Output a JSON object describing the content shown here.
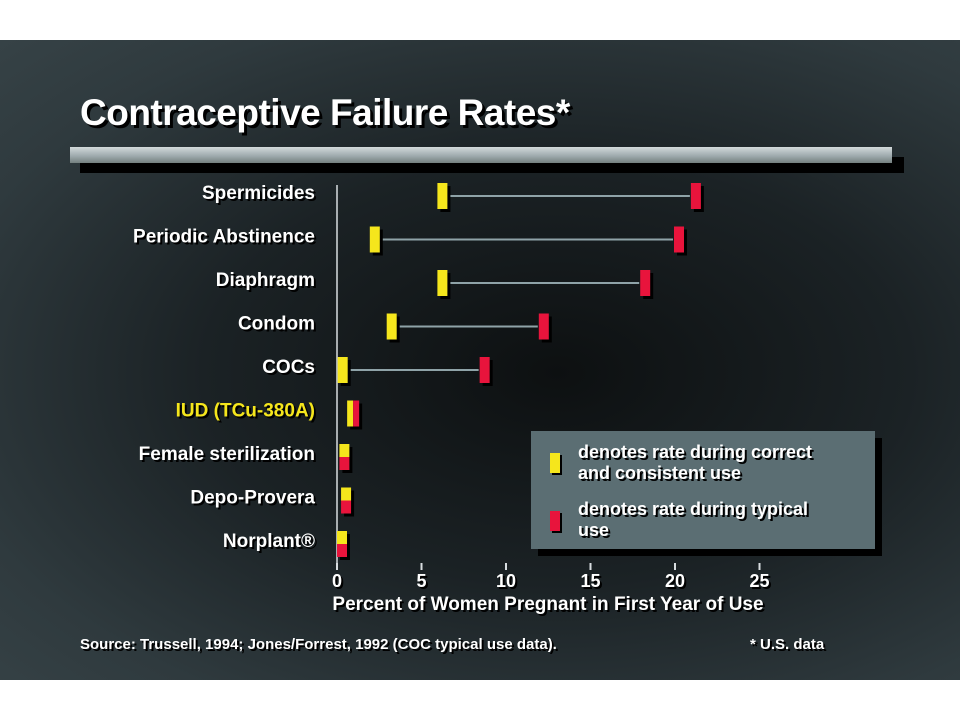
{
  "title": "Contraceptive Failure Rates*",
  "colors": {
    "correct_use": "#f5e61c",
    "typical_use": "#e8143c",
    "connector": "#8fa3a8",
    "highlight_label": "#f5e61c"
  },
  "legend": {
    "correct_label": "denotes rate during correct and consistent use",
    "correct_line1": "denotes rate during correct",
    "correct_line2": "and consistent use",
    "typical_label": "denotes rate during typical use",
    "typical_line1": "denotes rate during typical",
    "typical_line2": "use",
    "placement": "bottom-right"
  },
  "source": "Source:  Trussell, 1994; Jones/Forrest, 1992 (COC typical use data).",
  "footnote": "* U.S. data",
  "chart_data": {
    "type": "dot-range",
    "title": "Contraceptive Failure Rates*",
    "xlabel": "Percent of Women Pregnant in First Year of Use",
    "ylabel": "",
    "xlim": [
      0,
      25
    ],
    "xticks": [
      0,
      5,
      10,
      15,
      20,
      25
    ],
    "grid": false,
    "highlight_category": "IUD (TCu-380A)",
    "categories": [
      "Spermicides",
      "Periodic Abstinence",
      "Diaphragm",
      "Condom",
      "COCs",
      "IUD (TCu-380A)",
      "Female sterilization",
      "Depo-Provera",
      "Norplant®"
    ],
    "series": [
      {
        "name": "denotes rate during correct and consistent use",
        "values": [
          6,
          2,
          6,
          3,
          0.1,
          0.6,
          0.2,
          0.3,
          0.05
        ]
      },
      {
        "name": "denotes rate during typical use",
        "values": [
          21,
          20,
          18,
          12,
          8.5,
          0.8,
          0.4,
          0.3,
          0.05
        ]
      }
    ]
  }
}
